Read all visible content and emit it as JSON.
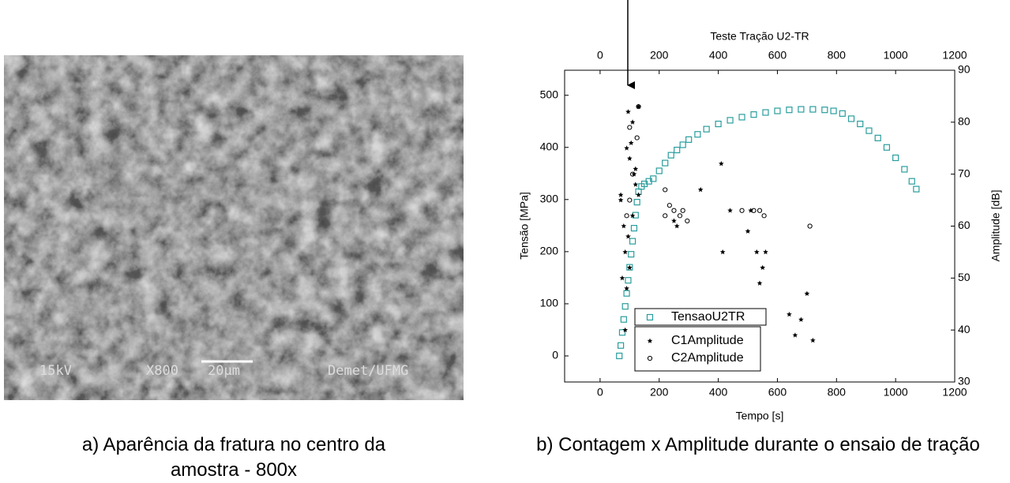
{
  "image": {
    "labels": [
      "15kV",
      "X800",
      "20µm",
      "Demet/UFMG"
    ]
  },
  "captions": [
    "a) Aparência da fratura no centro da amostra - 800x",
    "b) Contagem x Amplitude durante o ensaio de tração"
  ],
  "chart_data": {
    "type": "scatter",
    "title": "Teste Tração U2-TR",
    "xlabel": "Tempo [s]",
    "ylabel": "Tensão [MPa]",
    "y2label": "Amplitude [dB]",
    "xlim": [
      -120,
      1200
    ],
    "xticks": [
      0,
      200,
      400,
      600,
      800,
      1000,
      1200
    ],
    "x2lim": [
      -120,
      1200
    ],
    "x2ticks": [
      0,
      200,
      400,
      600,
      800,
      1000,
      1200
    ],
    "ylim": [
      -50,
      548
    ],
    "yticks": [
      0,
      100,
      200,
      300,
      400,
      500
    ],
    "y2lim": [
      30,
      90
    ],
    "y2ticks": [
      30,
      40,
      50,
      60,
      70,
      80,
      90
    ],
    "series": [
      {
        "name": "TensaoU2TR",
        "color": "#2a9d9d",
        "marker": "square",
        "x": [
          65,
          70,
          75,
          80,
          85,
          90,
          95,
          100,
          105,
          110,
          115,
          120,
          125,
          130,
          140,
          150,
          165,
          180,
          200,
          220,
          240,
          260,
          280,
          300,
          330,
          360,
          400,
          440,
          480,
          520,
          560,
          600,
          640,
          680,
          720,
          760,
          790,
          820,
          850,
          880,
          910,
          940,
          970,
          1000,
          1030,
          1055,
          1070
        ],
        "values": [
          0,
          20,
          45,
          70,
          95,
          120,
          145,
          170,
          195,
          220,
          245,
          270,
          295,
          315,
          325,
          330,
          335,
          340,
          355,
          370,
          385,
          395,
          405,
          415,
          425,
          435,
          445,
          452,
          458,
          463,
          467,
          470,
          472,
          473,
          473,
          472,
          470,
          465,
          455,
          445,
          432,
          418,
          400,
          380,
          358,
          335,
          320
        ]
      },
      {
        "name": "C1Amplitude",
        "color": "#000000",
        "marker": "star",
        "axis": "y2",
        "x": [
          95,
          130,
          110,
          90,
          100,
          115,
          120,
          130,
          70,
          80,
          95,
          85,
          100,
          75,
          90,
          110,
          120,
          105,
          70,
          85,
          250,
          260,
          340,
          410,
          415,
          440,
          500,
          510,
          530,
          550,
          560,
          540,
          640,
          660,
          680,
          700,
          720
        ],
        "values": [
          82,
          83,
          80,
          75,
          73,
          70,
          68,
          66,
          65,
          60,
          58,
          55,
          52,
          50,
          48,
          62,
          71,
          76,
          66,
          40,
          61,
          60,
          67,
          72,
          55,
          63,
          59,
          63,
          55,
          52,
          55,
          49,
          43,
          39,
          42,
          47,
          38
        ]
      },
      {
        "name": "C2Amplitude",
        "color": "#000000",
        "marker": "circle",
        "axis": "y2",
        "x": [
          100,
          130,
          125,
          110,
          100,
          90,
          220,
          235,
          250,
          270,
          280,
          295,
          220,
          480,
          520,
          540,
          555,
          710
        ],
        "values": [
          79,
          83,
          77,
          70,
          65,
          62,
          67,
          64,
          63,
          62,
          63,
          61,
          62,
          63,
          63,
          63,
          62,
          60
        ]
      }
    ]
  }
}
